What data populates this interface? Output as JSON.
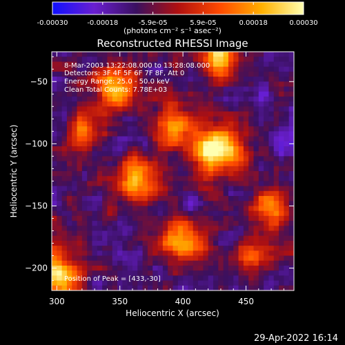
{
  "chart_data": {
    "type": "heatmap",
    "title": "Reconstructed RHESSI Image",
    "xlabel": "Heliocentric X (arcsec)",
    "ylabel": "Heliocentric Y (arcsec)",
    "xlim": [
      296,
      488
    ],
    "ylim": [
      -218,
      -26
    ],
    "xticks": [
      300,
      350,
      400,
      450
    ],
    "yticks": [
      -50,
      -100,
      -150,
      -200
    ],
    "colorbar": {
      "range": [
        -0.0003,
        0.0003
      ],
      "ticks": [
        "-0.00030",
        "-0.00018",
        "-5.9e-05",
        "5.9e-05",
        "0.00018",
        "0.00030"
      ],
      "unit_label": "(photons cm⁻² s⁻¹ asec⁻²)",
      "colors": [
        "#1010ff",
        "#6a1fd0",
        "#3a1060",
        "#b01010",
        "#ff4a00",
        "#ffb000",
        "#ffffb0"
      ]
    },
    "annotations": [
      "8-Mar-2003 13:22:08.000 to 13:28:08.000",
      "Detectors: 3F 4F 5F 6F 7F 8F, Att 0",
      "Energy Range: 25.0 - 50.0 keV",
      "Clean     Total Counts: 7.78E+03"
    ],
    "peak_label": "Position of Peak = [433,-30]",
    "sources": [
      {
        "x": 428,
        "y": -105,
        "sigma": 14,
        "amp": 1.0
      },
      {
        "x": 430,
        "y": -30,
        "sigma": 10,
        "amp": 0.9
      },
      {
        "x": 345,
        "y": -55,
        "sigma": 12,
        "amp": 0.8
      },
      {
        "x": 365,
        "y": -130,
        "sigma": 13,
        "amp": 0.7
      },
      {
        "x": 400,
        "y": -180,
        "sigma": 12,
        "amp": 0.75
      },
      {
        "x": 300,
        "y": -205,
        "sigma": 14,
        "amp": 0.85
      },
      {
        "x": 395,
        "y": -85,
        "sigma": 12,
        "amp": 0.6
      },
      {
        "x": 470,
        "y": -150,
        "sigma": 10,
        "amp": 0.65
      },
      {
        "x": 455,
        "y": -190,
        "sigma": 10,
        "amp": 0.55
      },
      {
        "x": 320,
        "y": -90,
        "sigma": 10,
        "amp": 0.5
      }
    ],
    "noise_level": 0.18,
    "background": -0.35
  },
  "footer": {
    "timestamp": "29-Apr-2022 16:14"
  }
}
